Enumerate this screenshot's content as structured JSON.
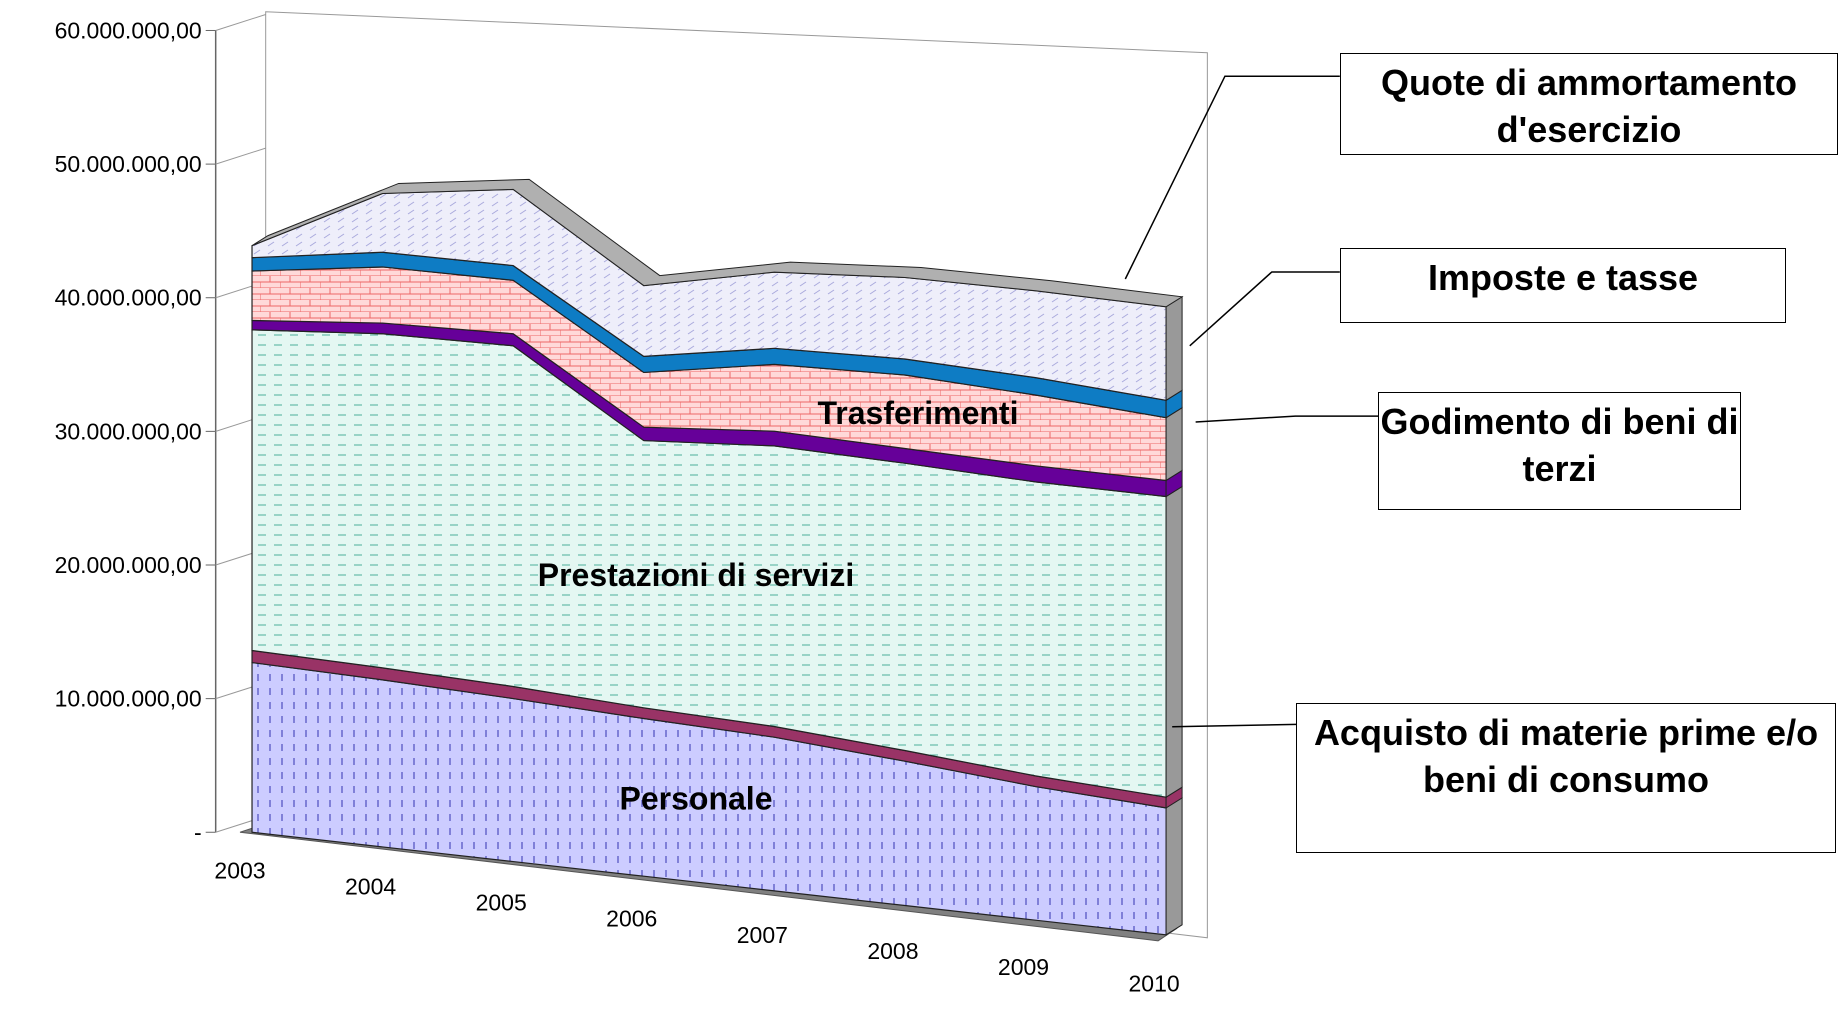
{
  "chart_data": {
    "type": "area3d",
    "categories": [
      "2003",
      "2004",
      "2005",
      "2006",
      "2007",
      "2008",
      "2009",
      "2010"
    ],
    "series": [
      {
        "name": "Personale",
        "color": "#ccccff",
        "values": [
          12700000,
          12500000,
          12200000,
          11800000,
          11500000,
          10800000,
          10000000,
          9500000
        ]
      },
      {
        "name": "Acquisto di materie prime e/o beni di consumo",
        "color": "#993366",
        "values": [
          900000,
          900000,
          900000,
          800000,
          800000,
          800000,
          800000,
          800000
        ]
      },
      {
        "name": "Prestazioni di servizi",
        "color": "#ccf2ea",
        "values": [
          24000000,
          25000000,
          25500000,
          20000000,
          21000000,
          21500000,
          22000000,
          22500000
        ]
      },
      {
        "name": "Godimento di  beni di terzi",
        "color": "#660099",
        "values": [
          700000,
          800000,
          900000,
          1000000,
          1100000,
          1100000,
          1200000,
          1200000
        ]
      },
      {
        "name": "Trasferimenti",
        "color": "#ffcccc",
        "values": [
          3700000,
          4200000,
          4000000,
          4100000,
          5000000,
          5500000,
          5300000,
          4700000
        ]
      },
      {
        "name": "Imposte e tasse",
        "color": "#0e7cc4",
        "values": [
          1000000,
          1100000,
          1100000,
          1200000,
          1200000,
          1200000,
          1300000,
          1300000
        ]
      },
      {
        "name": "Quote di ammortamento d'esercizio",
        "color": "#e6e6f5",
        "values": [
          900000,
          4400000,
          5700000,
          5300000,
          5700000,
          6100000,
          6500000,
          7000000
        ]
      }
    ],
    "ylim": [
      0,
      60000000
    ],
    "yticks": [
      {
        "value": 0,
        "label": "-"
      },
      {
        "value": 10000000,
        "label": "10.000.000,00"
      },
      {
        "value": 20000000,
        "label": "20.000.000,00"
      },
      {
        "value": 30000000,
        "label": "30.000.000,00"
      },
      {
        "value": 40000000,
        "label": "40.000.000,00"
      },
      {
        "value": 50000000,
        "label": "50.000.000,00"
      },
      {
        "value": 60000000,
        "label": "60.000.000,00"
      }
    ]
  }
}
